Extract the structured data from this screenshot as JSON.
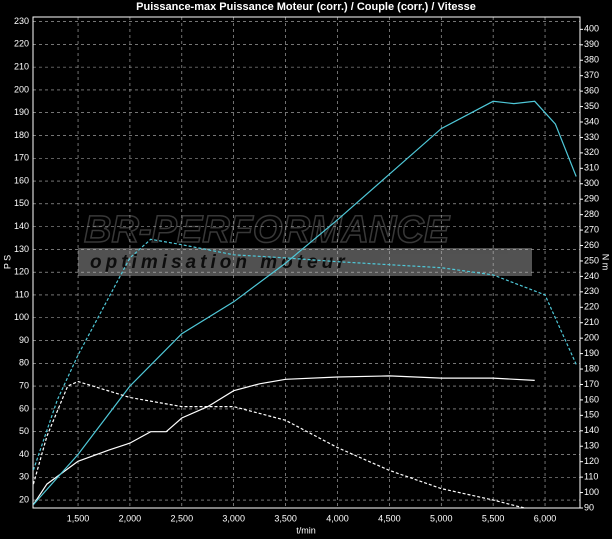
{
  "chart_data": {
    "type": "line",
    "title": "Puissance-max Puissance Moteur (corr.) / Couple (corr.) / Vitesse",
    "xlabel": "t/min",
    "ylabel": "P S",
    "y2label": "N m",
    "watermark": [
      "BR-PERFORMANCE",
      "optimisation moteur"
    ],
    "xlim": [
      1066,
      6337
    ],
    "ylim": [
      16.5,
      232
    ],
    "y2lim": [
      90,
      408
    ],
    "xticks": [
      {
        "value": 1500,
        "label": "1,500"
      },
      {
        "value": 2000,
        "label": "2,000"
      },
      {
        "value": 2500,
        "label": "2,500"
      },
      {
        "value": 3000,
        "label": "3,000"
      },
      {
        "value": 3500,
        "label": "3,500"
      },
      {
        "value": 4000,
        "label": "4,000"
      },
      {
        "value": 4500,
        "label": "4,500"
      },
      {
        "value": 5000,
        "label": "5,000"
      },
      {
        "value": 5500,
        "label": "5,500"
      },
      {
        "value": 6000,
        "label": "6,000"
      }
    ],
    "yticks": [
      20,
      30,
      40,
      50,
      60,
      70,
      80,
      90,
      100,
      110,
      120,
      130,
      140,
      150,
      160,
      170,
      180,
      190,
      200,
      210,
      220,
      230
    ],
    "y2ticks": [
      90,
      100,
      110,
      120,
      130,
      140,
      150,
      160,
      170,
      180,
      190,
      200,
      210,
      220,
      230,
      240,
      250,
      260,
      270,
      280,
      290,
      300,
      310,
      320,
      330,
      340,
      350,
      360,
      370,
      380,
      390,
      400
    ],
    "grid": true,
    "series": [
      {
        "color": "#ffffff",
        "dash": false,
        "axis": "y",
        "x": [
          1070,
          1200,
          1500,
          1800,
          2000,
          2200,
          2350,
          2500,
          2750,
          3000,
          3250,
          3500,
          4000,
          4500,
          5000,
          5500,
          5900
        ],
        "values": [
          18,
          27,
          37,
          42,
          45,
          50,
          50,
          56,
          61,
          68,
          71,
          73,
          74,
          74.5,
          73.5,
          73.5,
          72.5
        ]
      },
      {
        "color": "#4fc8d8",
        "dash": false,
        "axis": "y",
        "x": [
          1070,
          1500,
          2000,
          2500,
          3000,
          3500,
          4000,
          4500,
          5000,
          5500,
          5700,
          5900,
          6100,
          6300
        ],
        "values": [
          18,
          40,
          70,
          93,
          107,
          124,
          143,
          163,
          183,
          195,
          194,
          195,
          185,
          162
        ]
      },
      {
        "color": "#ffffff",
        "dash": true,
        "axis": "y",
        "x": [
          1070,
          1200,
          1400,
          1500,
          2000,
          2500,
          3000,
          3500,
          4000,
          4500,
          5000,
          5500,
          5800
        ],
        "values": [
          27,
          48,
          70,
          72,
          65,
          61,
          61,
          55,
          43,
          33,
          25,
          20,
          16.5
        ]
      },
      {
        "color": "#4fc8d8",
        "dash": true,
        "axis": "y2",
        "x": [
          1070,
          1300,
          1500,
          2000,
          2200,
          2500,
          3000,
          3500,
          4000,
          4500,
          5000,
          5500,
          6000,
          6300
        ],
        "values": [
          114.6,
          160,
          189,
          252,
          264,
          260.5,
          254,
          252,
          249.5,
          247.6,
          245.6,
          241,
          228,
          183
        ]
      }
    ]
  }
}
